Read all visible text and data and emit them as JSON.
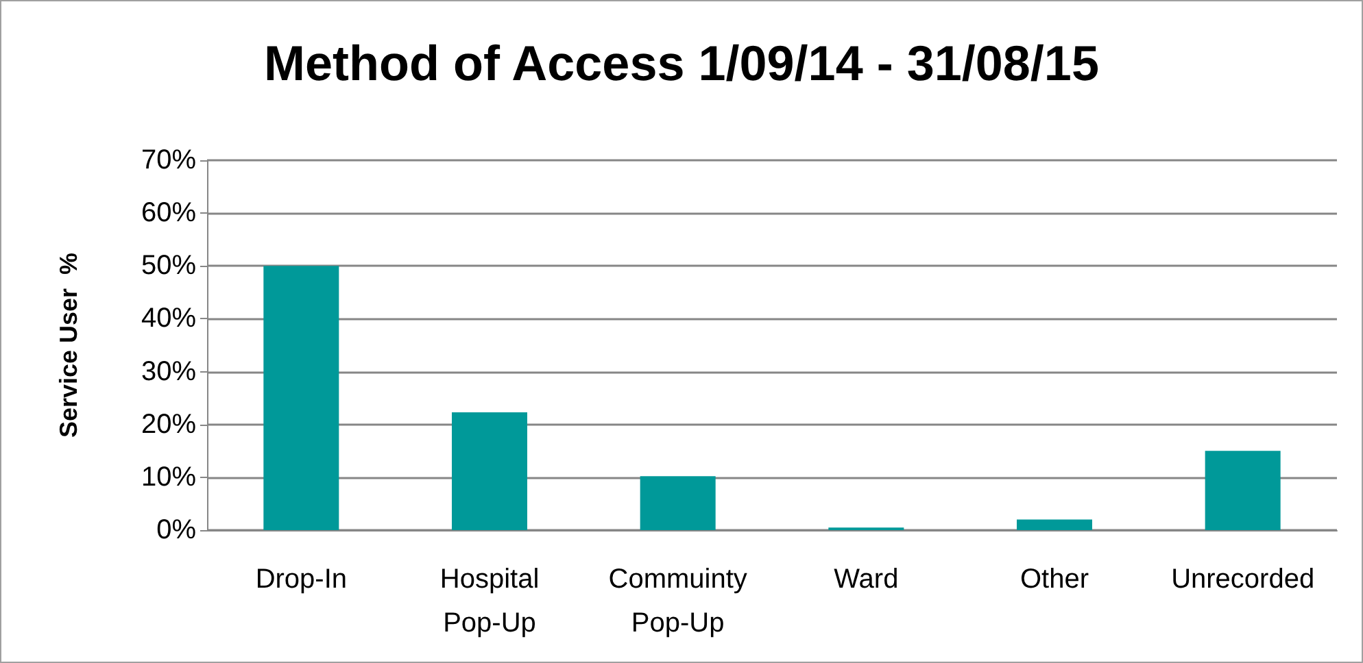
{
  "chart_data": {
    "type": "bar",
    "title": "Method of Access 1/09/14 - 31/08/15",
    "ylabel": "Service User  %",
    "categories": [
      "Drop-In",
      "Hospital\nPop-Up",
      "Commuinty\nPop-Up",
      "Ward",
      "Other",
      "Unrecorded"
    ],
    "values": [
      50,
      22.3,
      10.2,
      0.5,
      2,
      15
    ],
    "color": "#009999",
    "ylim": [
      0,
      70
    ],
    "yticks": [
      {
        "value": 0,
        "label": "0%"
      },
      {
        "value": 10,
        "label": "10%"
      },
      {
        "value": 20,
        "label": "20%"
      },
      {
        "value": 30,
        "label": "30%"
      },
      {
        "value": 40,
        "label": "40%"
      },
      {
        "value": 50,
        "label": "50%"
      },
      {
        "value": 60,
        "label": "60%"
      },
      {
        "value": 70,
        "label": "70%"
      }
    ],
    "grid": true
  }
}
